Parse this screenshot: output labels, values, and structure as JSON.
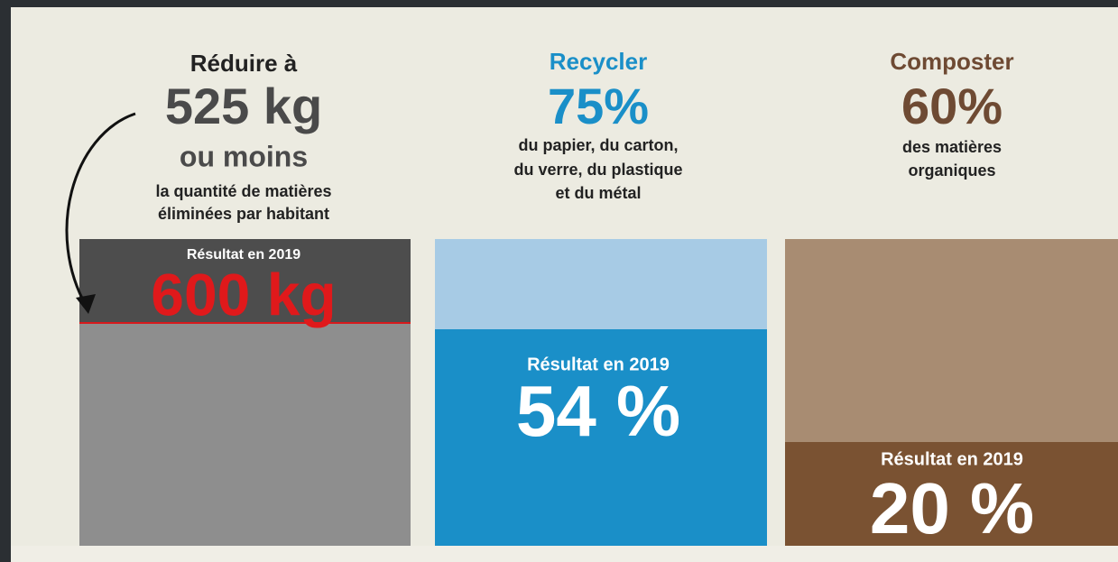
{
  "panels": [
    {
      "heading": "Réduire à",
      "target": "525 kg",
      "qualifier": "ou moins",
      "description": [
        "la quantité de matières",
        "éliminées par habitant"
      ],
      "result_label": "Résultat en 2019",
      "result": "600 kg"
    },
    {
      "heading": "Recycler",
      "target": "75%",
      "description": [
        "du papier, du carton,",
        "du verre, du plastique",
        "et du métal"
      ],
      "result_label": "Résultat en 2019",
      "result": "54 %"
    },
    {
      "heading": "Composter",
      "target": "60%",
      "description": [
        "des matières",
        "organiques"
      ],
      "result_label": "Résultat en 2019",
      "result": "20 %"
    }
  ]
}
